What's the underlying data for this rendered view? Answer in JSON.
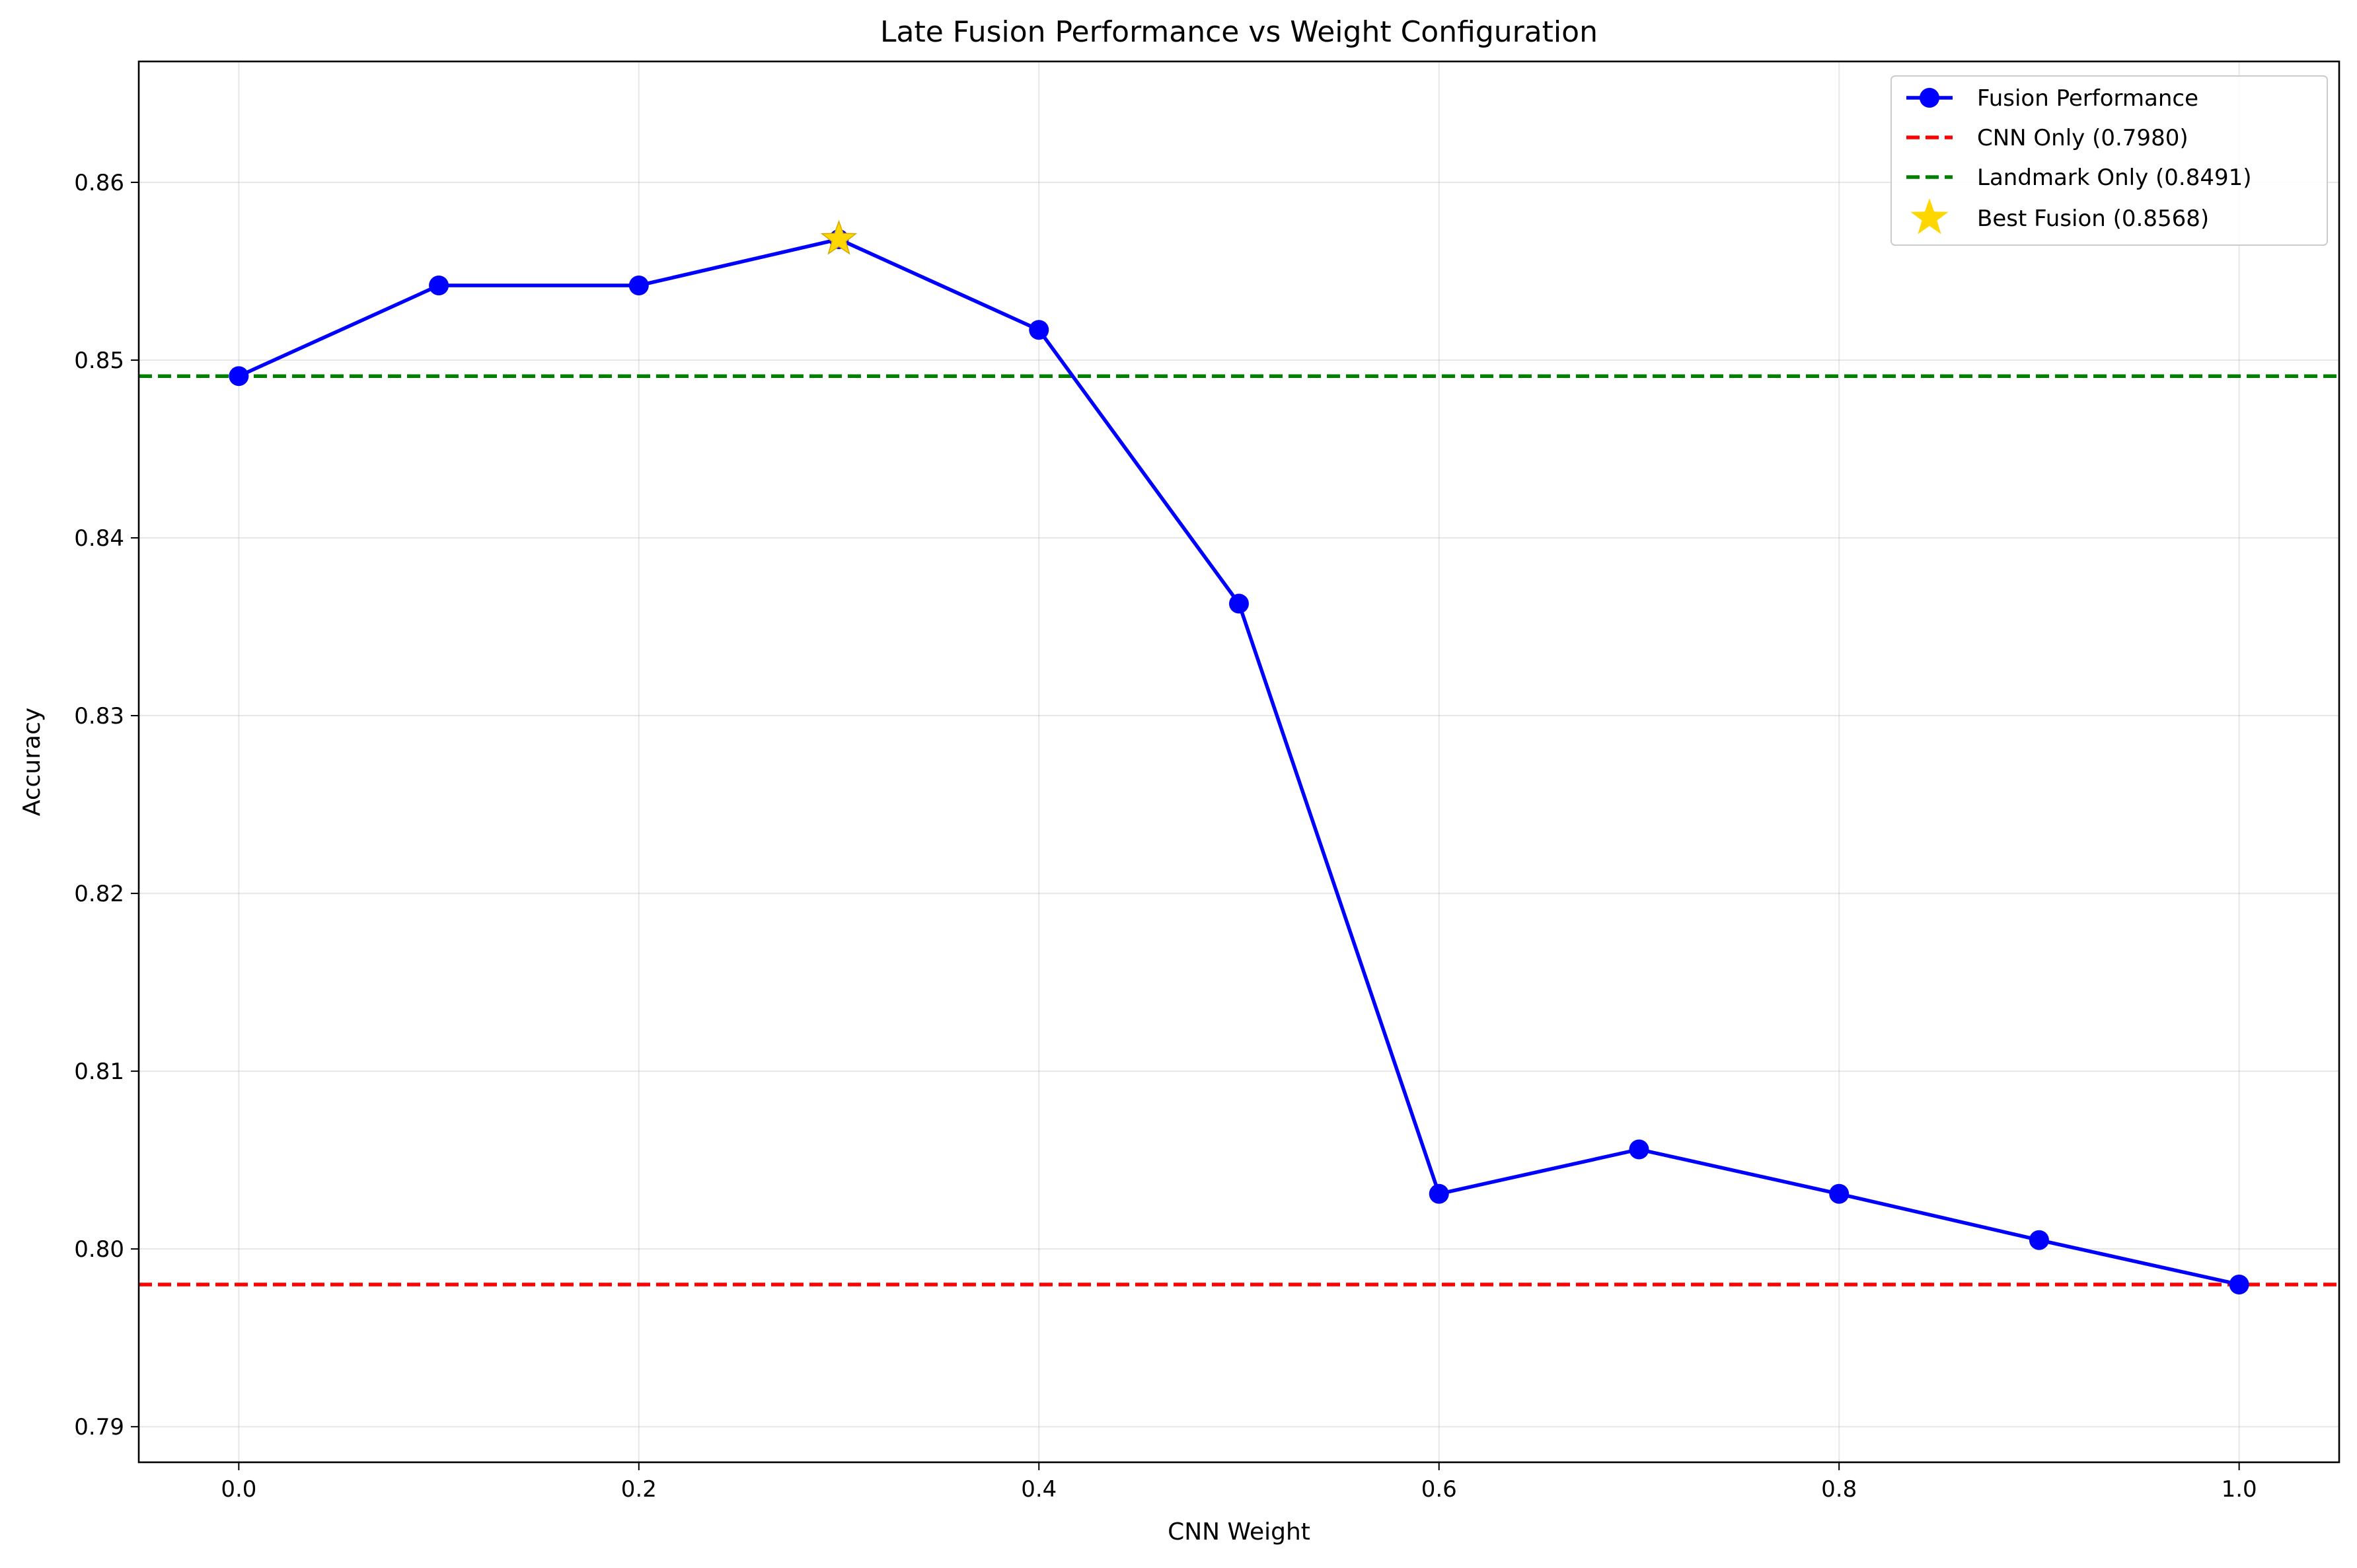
{
  "chart_data": {
    "type": "line",
    "title": "Late Fusion Performance vs Weight Configuration",
    "xlabel": "CNN Weight",
    "ylabel": "Accuracy",
    "xlim": [
      -0.05,
      1.05
    ],
    "ylim": [
      0.788,
      0.8668
    ],
    "xticks": [
      0.0,
      0.2,
      0.4,
      0.6,
      0.8,
      1.0
    ],
    "xtick_labels": [
      "0.0",
      "0.2",
      "0.4",
      "0.6",
      "0.8",
      "1.0"
    ],
    "yticks": [
      0.79,
      0.8,
      0.81,
      0.82,
      0.83,
      0.84,
      0.85,
      0.86
    ],
    "ytick_labels": [
      "0.79",
      "0.80",
      "0.81",
      "0.82",
      "0.83",
      "0.84",
      "0.85",
      "0.86"
    ],
    "grid": true,
    "legend_position": "top-right",
    "series": [
      {
        "name": "Fusion Performance",
        "kind": "line-markers",
        "color": "#0000ff",
        "x": [
          0.0,
          0.1,
          0.2,
          0.3,
          0.4,
          0.5,
          0.6,
          0.7,
          0.8,
          0.9,
          1.0
        ],
        "y": [
          0.8491,
          0.8542,
          0.8542,
          0.8568,
          0.8517,
          0.8363,
          0.8031,
          0.8056,
          0.8031,
          0.8005,
          0.798
        ]
      },
      {
        "name": "CNN Only (0.7980)",
        "kind": "hline",
        "color": "#ff0000",
        "y": 0.798
      },
      {
        "name": "Landmark Only (0.8491)",
        "kind": "hline",
        "color": "#008000",
        "y": 0.8491
      },
      {
        "name": "Best Fusion (0.8568)",
        "kind": "star",
        "color": "#ffd700",
        "x": 0.3,
        "y": 0.8568
      }
    ]
  }
}
